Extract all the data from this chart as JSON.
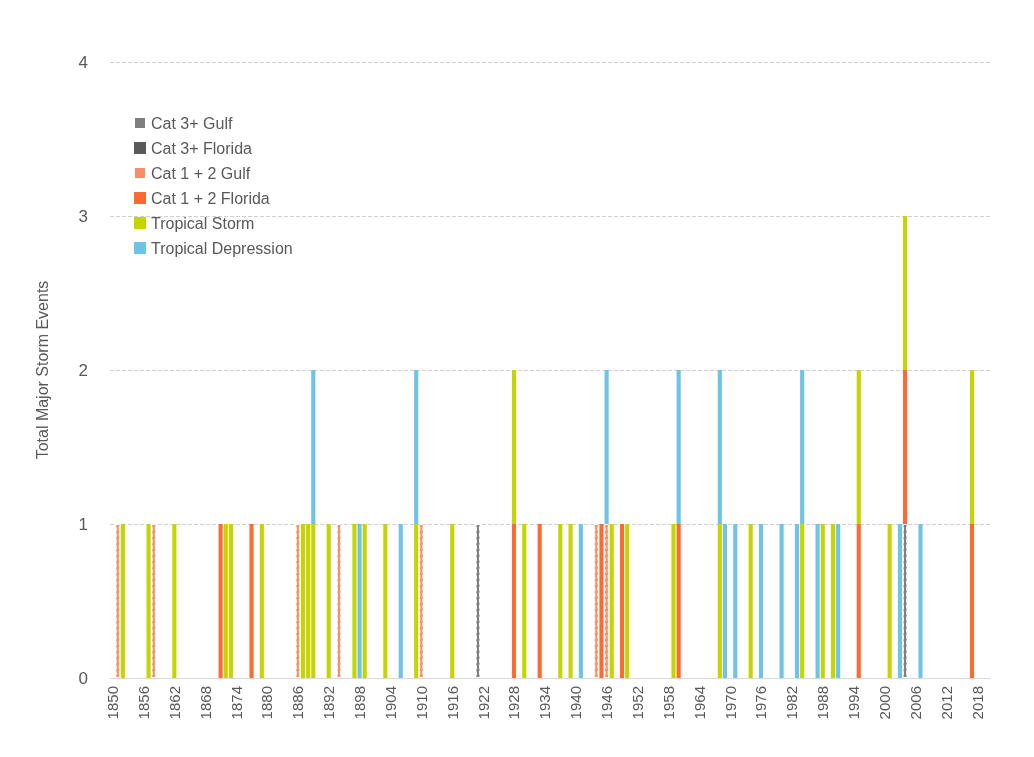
{
  "chart_data": {
    "type": "bar",
    "stacked": true,
    "ylabel": "Total Major Storm Events",
    "categories": [
      "1850",
      null,
      null,
      null,
      null,
      null,
      "1856",
      null,
      null,
      null,
      null,
      null,
      "1862",
      null,
      null,
      null,
      null,
      null,
      "1868",
      null,
      null,
      null,
      null,
      null,
      "1874",
      null,
      null,
      null,
      null,
      null,
      "1880",
      null,
      null,
      null,
      null,
      null,
      "1886",
      null,
      null,
      null,
      null,
      null,
      "1892",
      null,
      null,
      null,
      null,
      null,
      "1898",
      null,
      null,
      null,
      null,
      null,
      "1904",
      null,
      null,
      null,
      null,
      null,
      "1910",
      null,
      null,
      null,
      null,
      null,
      "1916",
      null,
      null,
      null,
      null,
      null,
      "1922",
      null,
      null,
      null,
      null,
      null,
      "1928",
      null,
      null,
      null,
      null,
      null,
      "1934",
      null,
      null,
      null,
      null,
      null,
      "1940",
      null,
      null,
      null,
      null,
      null,
      "1946",
      null,
      null,
      null,
      null,
      null,
      "1952",
      null,
      null,
      null,
      null,
      null,
      "1958",
      null,
      null,
      null,
      null,
      null,
      "1964",
      null,
      null,
      null,
      null,
      null,
      "1970",
      null,
      null,
      null,
      null,
      null,
      "1976",
      null,
      null,
      null,
      null,
      null,
      "1982",
      null,
      null,
      null,
      null,
      null,
      "1988",
      null,
      null,
      null,
      null,
      null,
      "1994",
      null,
      null,
      null,
      null,
      null,
      "2000",
      null,
      null,
      null,
      null,
      null,
      "2006",
      null,
      null,
      null,
      null,
      null,
      "2012",
      null,
      null,
      null,
      null,
      null,
      "2018",
      null,
      null
    ],
    "series": [
      {
        "name": "Cat 3+ Gulf",
        "color": "#7f7f7f",
        "line_style": "dashed",
        "values": [
          0,
          0,
          0,
          0,
          0,
          0,
          0,
          0,
          0,
          0,
          0,
          0,
          0,
          0,
          0,
          0,
          0,
          0,
          0,
          0,
          0,
          0,
          0,
          0,
          0,
          0,
          0,
          0,
          0,
          0,
          0,
          0,
          0,
          0,
          0,
          0,
          0,
          0,
          0,
          0,
          0,
          0,
          0,
          0,
          0,
          0,
          0,
          0,
          0,
          0,
          0,
          0,
          0,
          0,
          0,
          0,
          0,
          0,
          0,
          0,
          0,
          0,
          0,
          0,
          0,
          0,
          0,
          0,
          0,
          0,
          0,
          1,
          0,
          0,
          0,
          0,
          0,
          0,
          0,
          0,
          0,
          0,
          0,
          0,
          0,
          0,
          0,
          0,
          0,
          0,
          0,
          0,
          0,
          0,
          0,
          0,
          0,
          0,
          0,
          0,
          0,
          0,
          0,
          0,
          0,
          0,
          0,
          0,
          0,
          0,
          0,
          0,
          0,
          0,
          0,
          0,
          0,
          0,
          0,
          0,
          0,
          0,
          0,
          0,
          0,
          0,
          0,
          0,
          0,
          0,
          0,
          0,
          0,
          0,
          0,
          0,
          0,
          0,
          0,
          0,
          0,
          0,
          0,
          0,
          0,
          0,
          0,
          0,
          0,
          0,
          0,
          0,
          0,
          0,
          1,
          0,
          0,
          0,
          0,
          0,
          0,
          0,
          0,
          0,
          0,
          0,
          0,
          0,
          0,
          0,
          0
        ]
      },
      {
        "name": "Cat 3+ Florida",
        "color": "#595959",
        "values": [
          0,
          0,
          0,
          0,
          0,
          0,
          0,
          0,
          0,
          0,
          0,
          0,
          0,
          0,
          0,
          0,
          0,
          0,
          0,
          0,
          0,
          0,
          0,
          0,
          0,
          0,
          0,
          0,
          0,
          0,
          0,
          0,
          0,
          0,
          0,
          0,
          0,
          0,
          0,
          0,
          0,
          0,
          0,
          0,
          0,
          0,
          0,
          0,
          0,
          0,
          0,
          0,
          0,
          0,
          0,
          0,
          0,
          0,
          0,
          0,
          0,
          0,
          0,
          0,
          0,
          0,
          0,
          0,
          0,
          0,
          0,
          0,
          0,
          0,
          0,
          0,
          0,
          0,
          0,
          0,
          0,
          0,
          0,
          0,
          0,
          0,
          0,
          0,
          0,
          0,
          0,
          0,
          0,
          0,
          0,
          0,
          0,
          0,
          0,
          0,
          0,
          0,
          0,
          0,
          0,
          0,
          0,
          0,
          0,
          0,
          0,
          0,
          0,
          0,
          0,
          0,
          0,
          0,
          0,
          0,
          0,
          0,
          0,
          0,
          0,
          0,
          0,
          0,
          0,
          0,
          0,
          0,
          0,
          0,
          0,
          0,
          0,
          0,
          0,
          0,
          0,
          0,
          0,
          0,
          0,
          0,
          0,
          0,
          0,
          0,
          0,
          0,
          0,
          0,
          0,
          0,
          0,
          0,
          0,
          0,
          0,
          0,
          0,
          0,
          0,
          0,
          0,
          0,
          0,
          0,
          0
        ]
      },
      {
        "name": "Cat 1 + 2 Gulf",
        "color": "#f98e66",
        "line_style": "dashed",
        "values": [
          0,
          1,
          0,
          0,
          0,
          0,
          0,
          0,
          1,
          0,
          0,
          0,
          0,
          0,
          0,
          0,
          0,
          0,
          0,
          0,
          0,
          0,
          0,
          0,
          0,
          0,
          0,
          0,
          0,
          0,
          0,
          0,
          0,
          0,
          0,
          0,
          1,
          0,
          0,
          0,
          0,
          0,
          0,
          0,
          1,
          0,
          0,
          0,
          0,
          0,
          0,
          0,
          0,
          0,
          0,
          0,
          0,
          0,
          0,
          0,
          1,
          0,
          0,
          0,
          0,
          0,
          0,
          0,
          0,
          0,
          0,
          0,
          0,
          0,
          0,
          0,
          0,
          0,
          0,
          0,
          0,
          0,
          0,
          0,
          0,
          0,
          0,
          0,
          0,
          0,
          0,
          0,
          0,
          0,
          1,
          0,
          1,
          0,
          0,
          0,
          0,
          0,
          0,
          0,
          0,
          0,
          0,
          0,
          0,
          0,
          0,
          0,
          0,
          0,
          0,
          0,
          0,
          0,
          0,
          0,
          0,
          0,
          0,
          0,
          0,
          0,
          0,
          0,
          0,
          0,
          0,
          0,
          0,
          0,
          0,
          0,
          0,
          0,
          0,
          0,
          0,
          0,
          0,
          0,
          0,
          0,
          0,
          0,
          0,
          0,
          0,
          0,
          0,
          0,
          0,
          0,
          0,
          0,
          0,
          0,
          0,
          0,
          0,
          0,
          0,
          0,
          0,
          0,
          0,
          0,
          0
        ]
      },
      {
        "name": "Cat 1 + 2 Florida",
        "color": "#ff6a33",
        "values": [
          0,
          0,
          0,
          0,
          0,
          0,
          0,
          0,
          0,
          0,
          0,
          0,
          0,
          0,
          0,
          0,
          0,
          0,
          0,
          0,
          0,
          1,
          0,
          0,
          0,
          0,
          0,
          1,
          0,
          0,
          0,
          0,
          0,
          0,
          0,
          0,
          0,
          0,
          0,
          0,
          0,
          0,
          0,
          0,
          0,
          0,
          0,
          0,
          0,
          0,
          0,
          0,
          0,
          0,
          0,
          0,
          0,
          0,
          0,
          0,
          0,
          0,
          0,
          0,
          0,
          0,
          0,
          0,
          0,
          0,
          0,
          0,
          0,
          0,
          0,
          0,
          0,
          0,
          1,
          0,
          0,
          0,
          0,
          1,
          0,
          0,
          0,
          0,
          0,
          0,
          0,
          0,
          0,
          0,
          0,
          1,
          0,
          0,
          0,
          1,
          0,
          0,
          0,
          0,
          0,
          0,
          0,
          0,
          0,
          0,
          1,
          0,
          0,
          0,
          0,
          0,
          0,
          0,
          0,
          0,
          0,
          0,
          0,
          0,
          0,
          0,
          0,
          0,
          0,
          0,
          0,
          0,
          0,
          0,
          0,
          0,
          0,
          0,
          0,
          0,
          0,
          0,
          0,
          0,
          0,
          1,
          0,
          0,
          0,
          0,
          0,
          0,
          0,
          0,
          1,
          0,
          0,
          0,
          0,
          0,
          0,
          0,
          0,
          0,
          0,
          0,
          0,
          1,
          0,
          0,
          0
        ]
      },
      {
        "name": "Tropical Storm",
        "color": "#c5d500",
        "values": [
          0,
          0,
          1,
          0,
          0,
          0,
          0,
          1,
          0,
          0,
          0,
          0,
          1,
          0,
          0,
          0,
          0,
          0,
          0,
          0,
          0,
          0,
          1,
          1,
          0,
          0,
          0,
          0,
          0,
          1,
          0,
          0,
          0,
          0,
          0,
          0,
          0,
          1,
          1,
          1,
          0,
          0,
          1,
          0,
          0,
          0,
          0,
          1,
          0,
          1,
          0,
          0,
          0,
          1,
          0,
          0,
          0,
          0,
          0,
          1,
          0,
          0,
          0,
          0,
          0,
          0,
          1,
          0,
          0,
          0,
          0,
          0,
          0,
          0,
          0,
          0,
          0,
          0,
          1,
          0,
          1,
          0,
          0,
          0,
          0,
          0,
          0,
          1,
          0,
          1,
          0,
          0,
          0,
          0,
          0,
          0,
          0,
          1,
          0,
          0,
          1,
          0,
          0,
          0,
          0,
          0,
          0,
          0,
          0,
          1,
          0,
          0,
          0,
          0,
          0,
          0,
          0,
          0,
          1,
          0,
          0,
          0,
          0,
          0,
          1,
          0,
          0,
          0,
          0,
          0,
          0,
          0,
          0,
          0,
          1,
          0,
          0,
          0,
          1,
          0,
          1,
          0,
          0,
          0,
          0,
          1,
          0,
          0,
          0,
          0,
          0,
          1,
          0,
          0,
          1,
          0,
          0,
          0,
          0,
          0,
          0,
          0,
          0,
          0,
          0,
          0,
          0,
          1,
          0,
          0,
          0
        ]
      },
      {
        "name": "Tropical Depression",
        "color": "#6ec3e6",
        "values": [
          0,
          0,
          0,
          0,
          0,
          0,
          0,
          0,
          0,
          0,
          0,
          0,
          0,
          0,
          0,
          0,
          0,
          0,
          0,
          0,
          0,
          0,
          0,
          0,
          0,
          0,
          0,
          0,
          0,
          0,
          0,
          0,
          0,
          0,
          0,
          0,
          0,
          0,
          0,
          1,
          0,
          0,
          0,
          0,
          0,
          0,
          0,
          0,
          1,
          0,
          0,
          0,
          0,
          0,
          0,
          0,
          1,
          0,
          0,
          1,
          0,
          0,
          0,
          0,
          0,
          0,
          0,
          0,
          0,
          0,
          0,
          0,
          0,
          0,
          0,
          0,
          0,
          0,
          0,
          0,
          0,
          0,
          0,
          0,
          0,
          0,
          0,
          0,
          0,
          0,
          0,
          1,
          0,
          0,
          0,
          0,
          1,
          0,
          0,
          0,
          0,
          0,
          0,
          0,
          0,
          0,
          0,
          0,
          0,
          0,
          1,
          0,
          0,
          0,
          0,
          0,
          0,
          0,
          1,
          1,
          0,
          1,
          0,
          0,
          0,
          0,
          1,
          0,
          0,
          0,
          1,
          0,
          0,
          1,
          1,
          0,
          0,
          1,
          0,
          0,
          0,
          1,
          0,
          0,
          0,
          0,
          0,
          0,
          0,
          0,
          0,
          0,
          0,
          1,
          0,
          0,
          0,
          1,
          0,
          0,
          0,
          0,
          0,
          0,
          0,
          0,
          0,
          0,
          0,
          0,
          0
        ]
      }
    ],
    "ylim": [
      0,
      4
    ],
    "yticks": [
      0,
      1,
      2,
      3,
      4
    ],
    "grid": "y",
    "legend": "top left"
  }
}
